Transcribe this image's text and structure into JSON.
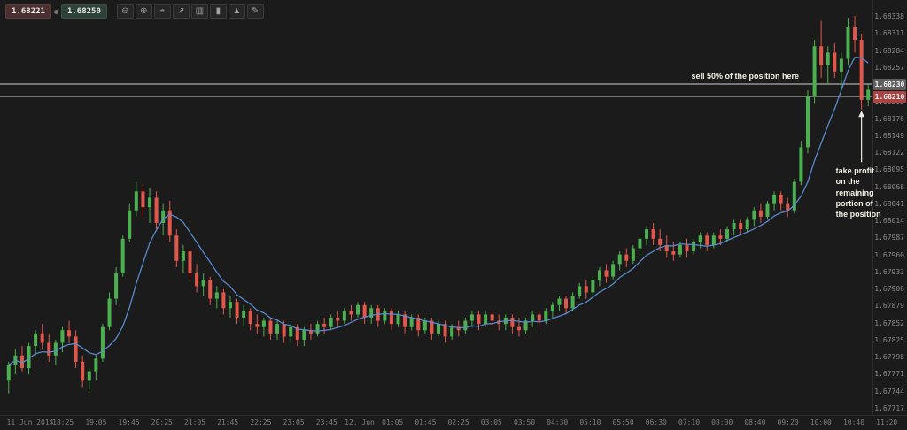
{
  "colors": {
    "background": "#1b1b1b",
    "candle_up": "#4caf50",
    "candle_down": "#e2574c",
    "ma_line": "#5b8fd4",
    "sell_line": "#d0d0d0",
    "tp_line": "#8f8f8f",
    "annotation_text": "#f3f0e4",
    "badge_gray": "#5f5f5f",
    "badge_red": "#a94442"
  },
  "quote_panel": {
    "bid": "1.68221",
    "ask": "1.68250"
  },
  "toolbar": {
    "buttons": [
      {
        "name": "zoom-out",
        "glyph": "⊖"
      },
      {
        "name": "zoom-in",
        "glyph": "⊕"
      },
      {
        "name": "crosshair",
        "glyph": "⌖"
      },
      {
        "name": "trend-line",
        "glyph": "↗"
      },
      {
        "name": "bar-chart",
        "glyph": "▥"
      },
      {
        "name": "candlestick-chart",
        "glyph": "▮"
      },
      {
        "name": "area-chart",
        "glyph": "▲"
      },
      {
        "name": "draw",
        "glyph": "✎"
      }
    ]
  },
  "annotations": {
    "sell": {
      "text": "sell 50% of the position here",
      "price": 1.6823
    },
    "take_profit": {
      "text": "take profit\non the\nremaining\nportion of\nthe position",
      "price": 1.6821
    }
  },
  "price_axis": {
    "labels": [
      "1.68338",
      "1.68311",
      "1.68284",
      "1.68257",
      "1.68230",
      "1.68203",
      "1.68176",
      "1.68149",
      "1.68122",
      "1.68095",
      "1.68068",
      "1.68041",
      "1.68014",
      "1.67987",
      "1.67960",
      "1.67933",
      "1.67906",
      "1.67879",
      "1.67852",
      "1.67825",
      "1.67798",
      "1.67771",
      "1.67744",
      "1.67717"
    ],
    "badges": [
      {
        "value": "1.68230",
        "price": 1.6823,
        "bg": "#5f5f5f"
      },
      {
        "value": "1.68210",
        "price": 1.6821,
        "bg": "#a94442"
      }
    ]
  },
  "time_axis": {
    "labels": [
      "11 Jun 2014",
      "18:25",
      "19:05",
      "19:45",
      "20:25",
      "21:05",
      "21:45",
      "22:25",
      "23:05",
      "23:45",
      "12. Jun",
      "01:05",
      "01:45",
      "02:25",
      "03:05",
      "03:50",
      "04:30",
      "05:10",
      "05:50",
      "06:30",
      "07:10",
      "08:00",
      "08:40",
      "09:20",
      "10:00",
      "10:40",
      "11:20"
    ]
  },
  "chart_data": {
    "type": "candlestick",
    "price_min": 1.67717,
    "price_max": 1.68338,
    "hlines": [
      1.6823,
      1.6821
    ],
    "ma_period": 8,
    "legend_position": "none",
    "grid": false,
    "candles": [
      [
        1.6776,
        1.6779,
        1.6774,
        1.67785
      ],
      [
        1.67785,
        1.6781,
        1.6777,
        1.678
      ],
      [
        1.678,
        1.67815,
        1.67775,
        1.6778
      ],
      [
        1.6778,
        1.6782,
        1.6777,
        1.67815
      ],
      [
        1.67815,
        1.6784,
        1.678,
        1.67835
      ],
      [
        1.67835,
        1.6785,
        1.6781,
        1.6782
      ],
      [
        1.6782,
        1.67835,
        1.6779,
        1.678
      ],
      [
        1.678,
        1.67825,
        1.67785,
        1.6782
      ],
      [
        1.6782,
        1.67845,
        1.67805,
        1.6784
      ],
      [
        1.6784,
        1.67855,
        1.6782,
        1.6783
      ],
      [
        1.6783,
        1.6784,
        1.6778,
        1.6779
      ],
      [
        1.6779,
        1.678,
        1.6775,
        1.6776
      ],
      [
        1.6776,
        1.6778,
        1.67745,
        1.67775
      ],
      [
        1.67775,
        1.678,
        1.6776,
        1.67795
      ],
      [
        1.67795,
        1.6785,
        1.6779,
        1.67845
      ],
      [
        1.67845,
        1.679,
        1.6784,
        1.6789
      ],
      [
        1.6789,
        1.6794,
        1.6788,
        1.6793
      ],
      [
        1.6793,
        1.6799,
        1.67925,
        1.67985
      ],
      [
        1.67985,
        1.6804,
        1.6798,
        1.6803
      ],
      [
        1.6803,
        1.68075,
        1.6802,
        1.6806
      ],
      [
        1.6806,
        1.6807,
        1.6802,
        1.68035
      ],
      [
        1.68035,
        1.68065,
        1.6801,
        1.6805
      ],
      [
        1.6805,
        1.6806,
        1.68,
        1.6801
      ],
      [
        1.6801,
        1.6804,
        1.6799,
        1.6803
      ],
      [
        1.6803,
        1.68045,
        1.6798,
        1.6799
      ],
      [
        1.6799,
        1.68,
        1.6794,
        1.6795
      ],
      [
        1.6795,
        1.67975,
        1.6793,
        1.67965
      ],
      [
        1.67965,
        1.6797,
        1.6792,
        1.6793
      ],
      [
        1.6793,
        1.67945,
        1.679,
        1.6791
      ],
      [
        1.6791,
        1.6793,
        1.67895,
        1.6792
      ],
      [
        1.6792,
        1.67925,
        1.6788,
        1.6789
      ],
      [
        1.6789,
        1.6791,
        1.67875,
        1.679
      ],
      [
        1.679,
        1.67905,
        1.67865,
        1.67875
      ],
      [
        1.67875,
        1.67895,
        1.6786,
        1.67885
      ],
      [
        1.67885,
        1.6789,
        1.6785,
        1.6786
      ],
      [
        1.6786,
        1.6788,
        1.67845,
        1.6787
      ],
      [
        1.6787,
        1.67875,
        1.6784,
        1.6785
      ],
      [
        1.6785,
        1.67865,
        1.67835,
        1.67845
      ],
      [
        1.67845,
        1.6786,
        1.6783,
        1.67855
      ],
      [
        1.67855,
        1.6786,
        1.67825,
        1.67835
      ],
      [
        1.67835,
        1.67855,
        1.67825,
        1.6785
      ],
      [
        1.6785,
        1.67855,
        1.6782,
        1.6783
      ],
      [
        1.6783,
        1.6785,
        1.6782,
        1.67845
      ],
      [
        1.67845,
        1.6785,
        1.67815,
        1.67825
      ],
      [
        1.67825,
        1.67845,
        1.67815,
        1.6784
      ],
      [
        1.6784,
        1.6785,
        1.67825,
        1.67835
      ],
      [
        1.67835,
        1.67855,
        1.6783,
        1.6785
      ],
      [
        1.6785,
        1.6786,
        1.67835,
        1.67845
      ],
      [
        1.67845,
        1.67865,
        1.6784,
        1.6786
      ],
      [
        1.6786,
        1.6787,
        1.67845,
        1.67855
      ],
      [
        1.67855,
        1.67875,
        1.6785,
        1.6787
      ],
      [
        1.6787,
        1.6788,
        1.67855,
        1.67865
      ],
      [
        1.67865,
        1.67885,
        1.6786,
        1.6788
      ],
      [
        1.6788,
        1.67885,
        1.6785,
        1.6786
      ],
      [
        1.6786,
        1.6788,
        1.6785,
        1.67875
      ],
      [
        1.67875,
        1.6788,
        1.67845,
        1.67855
      ],
      [
        1.67855,
        1.67875,
        1.6785,
        1.6787
      ],
      [
        1.6787,
        1.67875,
        1.6784,
        1.6785
      ],
      [
        1.6785,
        1.6787,
        1.67845,
        1.67865
      ],
      [
        1.67865,
        1.6787,
        1.67835,
        1.67845
      ],
      [
        1.67845,
        1.67865,
        1.6784,
        1.6786
      ],
      [
        1.6786,
        1.67865,
        1.6783,
        1.6784
      ],
      [
        1.6784,
        1.6786,
        1.67835,
        1.67855
      ],
      [
        1.67855,
        1.6786,
        1.67825,
        1.67835
      ],
      [
        1.67835,
        1.67855,
        1.6783,
        1.6785
      ],
      [
        1.6785,
        1.67855,
        1.6782,
        1.6783
      ],
      [
        1.6783,
        1.6785,
        1.67825,
        1.67845
      ],
      [
        1.67845,
        1.67855,
        1.6783,
        1.6784
      ],
      [
        1.6784,
        1.6786,
        1.67835,
        1.67855
      ],
      [
        1.67855,
        1.6787,
        1.67845,
        1.67865
      ],
      [
        1.67865,
        1.6787,
        1.6784,
        1.6785
      ],
      [
        1.6785,
        1.6787,
        1.67845,
        1.67865
      ],
      [
        1.67865,
        1.6787,
        1.67845,
        1.67855
      ],
      [
        1.67855,
        1.67865,
        1.6784,
        1.6785
      ],
      [
        1.6785,
        1.67865,
        1.6784,
        1.6786
      ],
      [
        1.6786,
        1.67865,
        1.67835,
        1.67845
      ],
      [
        1.67845,
        1.6786,
        1.6783,
        1.6784
      ],
      [
        1.6784,
        1.6786,
        1.67835,
        1.67855
      ],
      [
        1.67855,
        1.6787,
        1.67845,
        1.67865
      ],
      [
        1.67865,
        1.6787,
        1.67845,
        1.67855
      ],
      [
        1.67855,
        1.67875,
        1.6785,
        1.6787
      ],
      [
        1.6787,
        1.67885,
        1.6786,
        1.6788
      ],
      [
        1.6788,
        1.67895,
        1.6787,
        1.6789
      ],
      [
        1.6789,
        1.67895,
        1.67865,
        1.67875
      ],
      [
        1.67875,
        1.679,
        1.6787,
        1.67895
      ],
      [
        1.67895,
        1.67915,
        1.6789,
        1.6791
      ],
      [
        1.6791,
        1.6792,
        1.6789,
        1.679
      ],
      [
        1.679,
        1.67925,
        1.67895,
        1.6792
      ],
      [
        1.6792,
        1.6794,
        1.6791,
        1.67935
      ],
      [
        1.67935,
        1.67945,
        1.67915,
        1.67925
      ],
      [
        1.67925,
        1.6795,
        1.6792,
        1.67945
      ],
      [
        1.67945,
        1.67965,
        1.67935,
        1.6796
      ],
      [
        1.6796,
        1.6797,
        1.6794,
        1.6795
      ],
      [
        1.6795,
        1.67975,
        1.67945,
        1.6797
      ],
      [
        1.6797,
        1.6799,
        1.6796,
        1.67985
      ],
      [
        1.67985,
        1.68005,
        1.67975,
        1.68
      ],
      [
        1.68,
        1.6801,
        1.67975,
        1.67985
      ],
      [
        1.67985,
        1.68,
        1.67965,
        1.67975
      ],
      [
        1.67975,
        1.6799,
        1.67955,
        1.67965
      ],
      [
        1.67965,
        1.6798,
        1.6795,
        1.6796
      ],
      [
        1.6796,
        1.6798,
        1.67955,
        1.67975
      ],
      [
        1.67975,
        1.67985,
        1.67955,
        1.67965
      ],
      [
        1.67965,
        1.67985,
        1.6796,
        1.6798
      ],
      [
        1.6798,
        1.67995,
        1.6797,
        1.6799
      ],
      [
        1.6799,
        1.67995,
        1.67965,
        1.67975
      ],
      [
        1.67975,
        1.67995,
        1.6797,
        1.6799
      ],
      [
        1.6799,
        1.68,
        1.67975,
        1.67985
      ],
      [
        1.67985,
        1.68005,
        1.6798,
        1.68
      ],
      [
        1.68,
        1.68015,
        1.6799,
        1.6801
      ],
      [
        1.6801,
        1.68015,
        1.6799,
        1.68
      ],
      [
        1.68,
        1.6802,
        1.67995,
        1.68015
      ],
      [
        1.68015,
        1.68035,
        1.68005,
        1.6803
      ],
      [
        1.6803,
        1.6804,
        1.6801,
        1.6802
      ],
      [
        1.6802,
        1.68045,
        1.68015,
        1.6804
      ],
      [
        1.6804,
        1.6806,
        1.6803,
        1.68055
      ],
      [
        1.68055,
        1.6806,
        1.6803,
        1.6804
      ],
      [
        1.6804,
        1.6805,
        1.6802,
        1.6803
      ],
      [
        1.6803,
        1.6808,
        1.68025,
        1.68075
      ],
      [
        1.68075,
        1.6814,
        1.6807,
        1.6813
      ],
      [
        1.6813,
        1.6822,
        1.6812,
        1.6821
      ],
      [
        1.6821,
        1.683,
        1.682,
        1.6829
      ],
      [
        1.6829,
        1.6833,
        1.6824,
        1.6826
      ],
      [
        1.6826,
        1.6829,
        1.6823,
        1.6828
      ],
      [
        1.6828,
        1.68295,
        1.6824,
        1.6825
      ],
      [
        1.6825,
        1.6828,
        1.6822,
        1.6827
      ],
      [
        1.6827,
        1.68335,
        1.6826,
        1.6832
      ],
      [
        1.6832,
        1.68338,
        1.6828,
        1.683
      ],
      [
        1.683,
        1.6831,
        1.6819,
        1.68205
      ],
      [
        1.68205,
        1.6823,
        1.68195,
        1.68221
      ]
    ]
  }
}
